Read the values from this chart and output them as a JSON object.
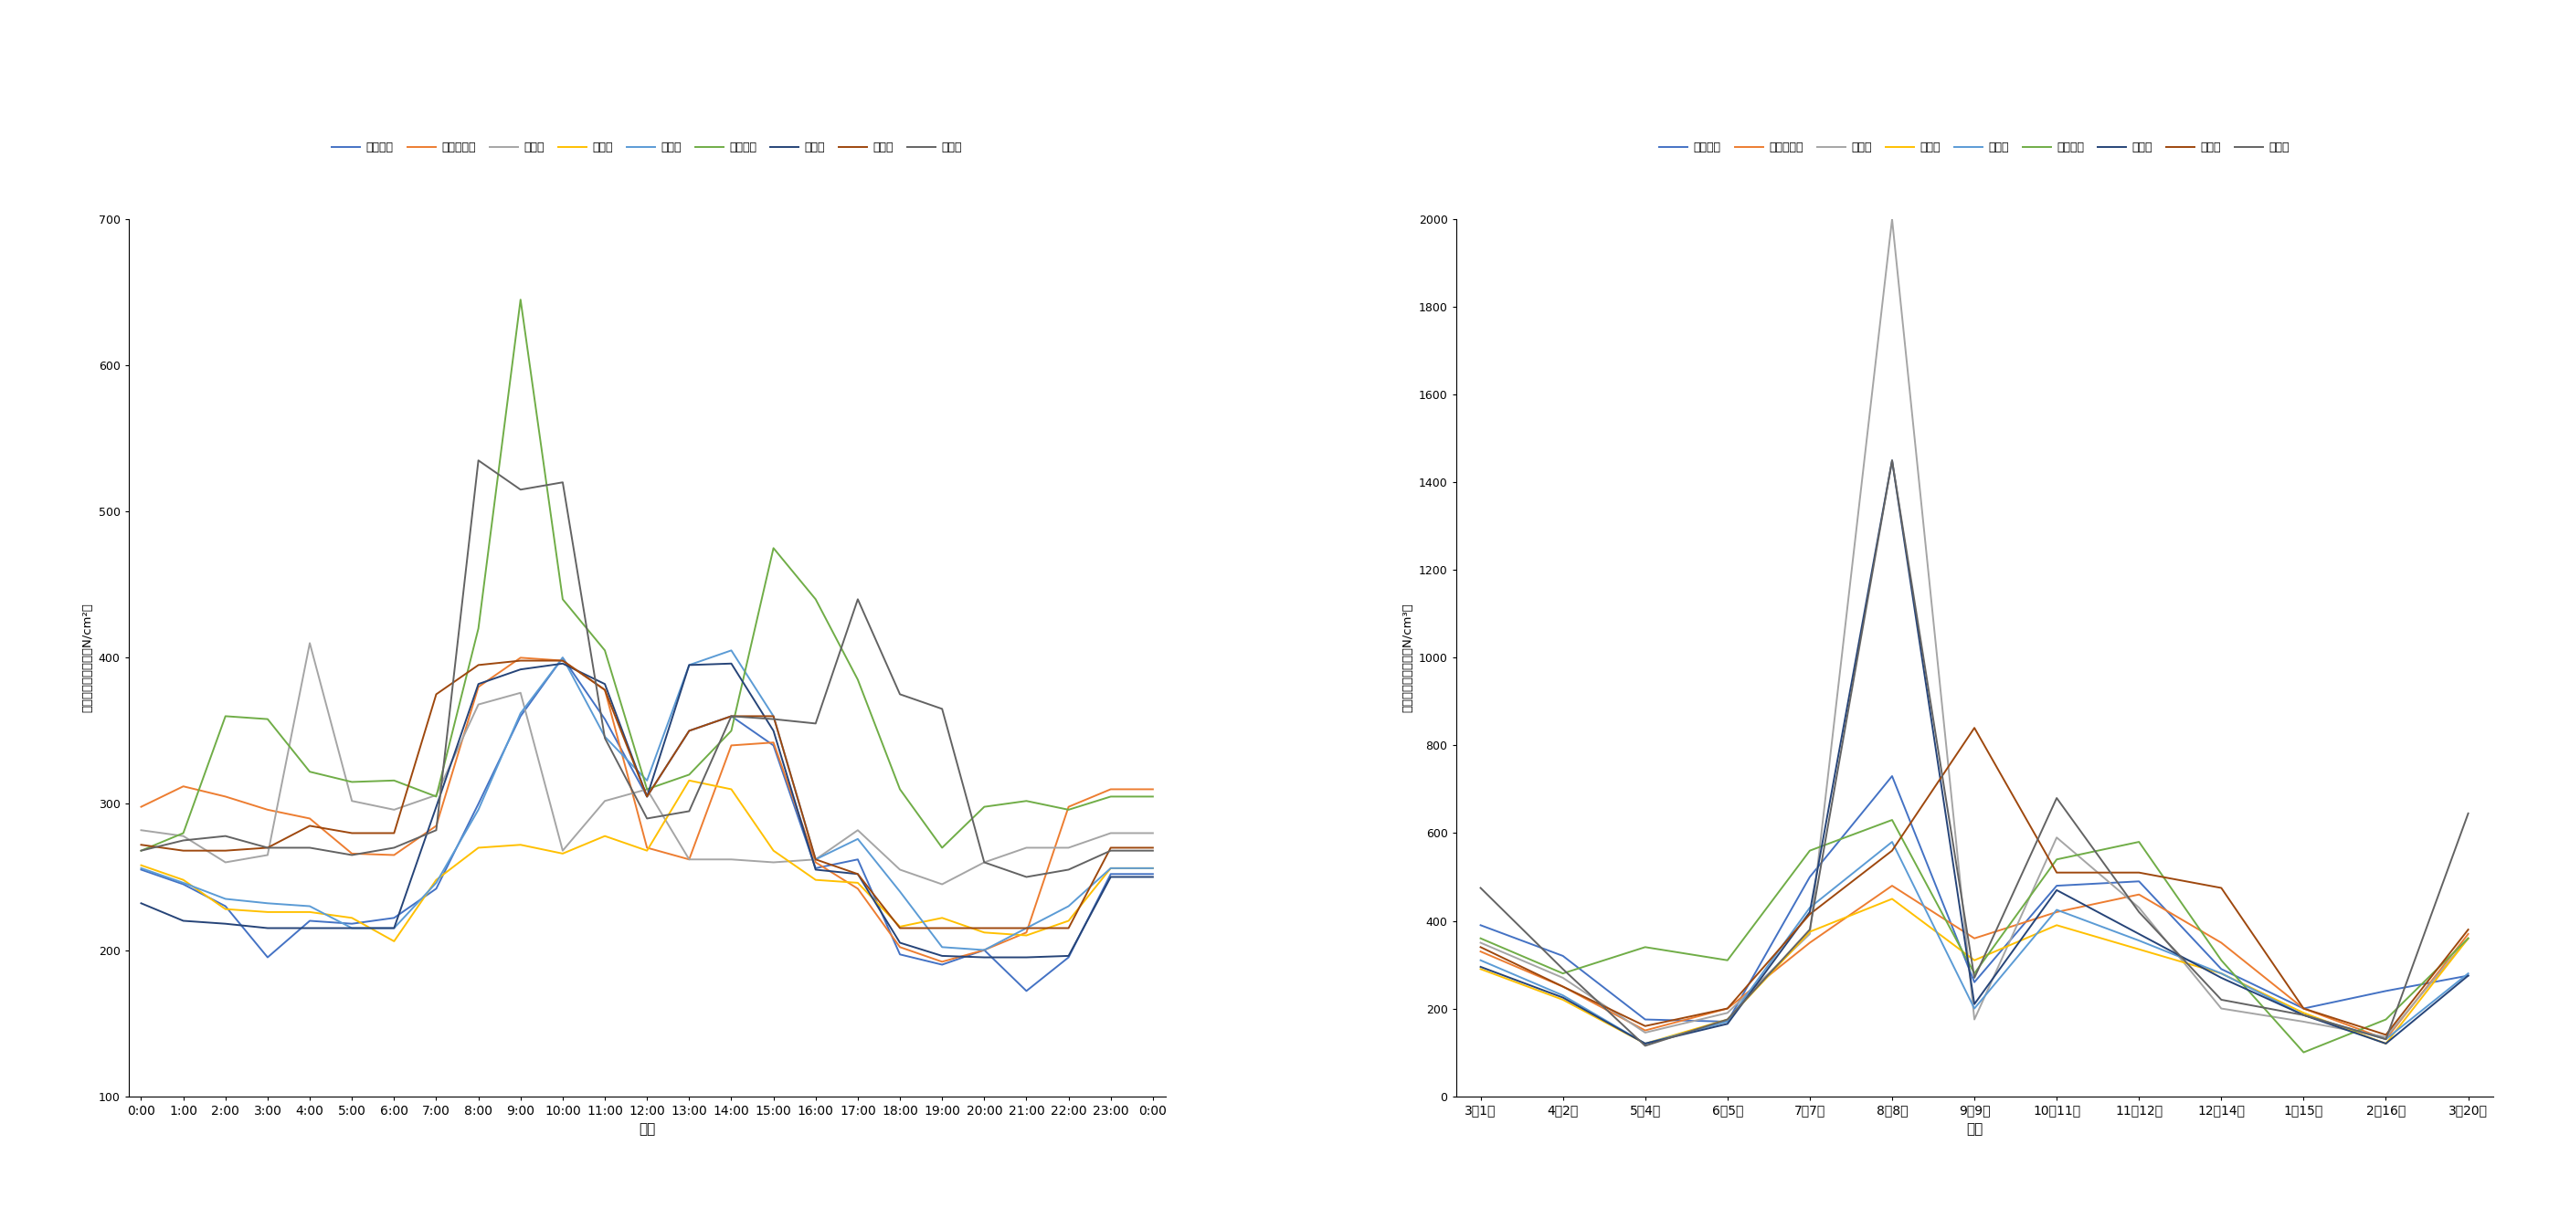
{
  "chart1": {
    "xlabel": "时间",
    "ylabel": "负离子浓度日均值（N/cm²）",
    "ylim": [
      100,
      700
    ],
    "yticks": [
      100,
      200,
      300,
      400,
      500,
      600,
      700
    ],
    "xticks": [
      "0:00",
      "1:00",
      "2:00",
      "3:00",
      "4:00",
      "5:00",
      "6:00",
      "7:00",
      "8:00",
      "9:00",
      "10:00",
      "11:00",
      "12:00",
      "13:00",
      "14:00",
      "15:00",
      "16:00",
      "17:00",
      "18:00",
      "19:00",
      "20:00",
      "21:00",
      "22:00",
      "23:00",
      "0:00"
    ],
    "series": {
      "公园大门": {
        "color": "#4472C4",
        "data": [
          255,
          245,
          230,
          195,
          220,
          218,
          222,
          242,
          300,
          360,
          400,
          358,
          305,
          350,
          360,
          340,
          256,
          262,
          197,
          190,
          200,
          172,
          195,
          252,
          252
        ]
      },
      "大门旁密林": {
        "color": "#ED7D31",
        "data": [
          298,
          312,
          305,
          296,
          290,
          266,
          265,
          285,
          380,
          400,
          398,
          378,
          270,
          262,
          340,
          342,
          260,
          242,
          202,
          192,
          200,
          212,
          298,
          310,
          310
        ]
      },
      "荷花池": {
        "color": "#A5A5A5",
        "data": [
          282,
          278,
          260,
          265,
          410,
          302,
          296,
          306,
          368,
          376,
          268,
          302,
          310,
          262,
          262,
          260,
          262,
          282,
          255,
          245,
          260,
          270,
          270,
          280,
          280
        ]
      },
      "乔灌草": {
        "color": "#FFC000",
        "data": [
          258,
          248,
          228,
          226,
          226,
          222,
          206,
          248,
          270,
          272,
          266,
          278,
          268,
          316,
          310,
          268,
          248,
          246,
          216,
          222,
          212,
          210,
          220,
          256,
          256
        ]
      },
      "小广场": {
        "color": "#5B9BD5",
        "data": [
          256,
          246,
          235,
          232,
          230,
          215,
          215,
          246,
          296,
          362,
          400,
          346,
          316,
          395,
          405,
          360,
          262,
          276,
          240,
          202,
          200,
          215,
          230,
          256,
          256
        ]
      },
      "音乐广场": {
        "color": "#70AD47",
        "data": [
          268,
          280,
          360,
          358,
          322,
          315,
          316,
          305,
          420,
          645,
          440,
          405,
          310,
          320,
          350,
          475,
          440,
          385,
          310,
          270,
          298,
          302,
          296,
          305,
          305
        ]
      },
      "八角亭": {
        "color": "#264478",
        "data": [
          232,
          220,
          218,
          215,
          215,
          215,
          215,
          298,
          382,
          392,
          396,
          382,
          305,
          395,
          396,
          350,
          255,
          252,
          205,
          196,
          195,
          195,
          196,
          250,
          250
        ]
      },
      "水杉林": {
        "color": "#9E480E",
        "data": [
          272,
          268,
          268,
          270,
          285,
          280,
          280,
          375,
          395,
          398,
          398,
          378,
          305,
          350,
          360,
          360,
          262,
          252,
          215,
          215,
          215,
          215,
          215,
          270,
          270
        ]
      },
      "大草坪": {
        "color": "#636363",
        "data": [
          268,
          275,
          278,
          270,
          270,
          265,
          270,
          282,
          535,
          515,
          520,
          345,
          290,
          295,
          360,
          358,
          355,
          440,
          375,
          365,
          260,
          250,
          255,
          268,
          268
        ]
      }
    }
  },
  "chart2": {
    "xlabel": "时间",
    "ylabel": "负离子浓度日均值（N/cm³）",
    "ylim": [
      0,
      2000
    ],
    "yticks": [
      0,
      200,
      400,
      600,
      800,
      1000,
      1200,
      1400,
      1600,
      1800,
      2000
    ],
    "xticks": [
      "3月1日",
      "4月2日",
      "5月4日",
      "6月5日",
      "7月7日",
      "8月8日",
      "9月9日",
      "10月11日",
      "11月12日",
      "12月14日",
      "1月15日",
      "2月16日",
      "3月20日"
    ],
    "series": {
      "公园大门": {
        "color": "#4472C4",
        "data": [
          390,
          320,
          175,
          170,
          500,
          730,
          260,
          480,
          490,
          290,
          200,
          240,
          275
        ]
      },
      "人门旁密林": {
        "color": "#ED7D31",
        "data": [
          330,
          250,
          150,
          200,
          350,
          480,
          360,
          420,
          460,
          350,
          200,
          130,
          370
        ]
      },
      "荷花池": {
        "color": "#A5A5A5",
        "data": [
          350,
          270,
          145,
          190,
          370,
          2000,
          175,
          590,
          430,
          200,
          170,
          135,
          360
        ]
      },
      "乔灌草": {
        "color": "#FFC000",
        "data": [
          290,
          220,
          120,
          175,
          375,
          450,
          310,
          390,
          335,
          280,
          190,
          120,
          360
        ]
      },
      "小广场": {
        "color": "#5B9BD5",
        "data": [
          310,
          230,
          120,
          170,
          430,
          580,
          200,
          425,
          355,
          280,
          185,
          130,
          280
        ]
      },
      "音乐广场": {
        "color": "#70AD47",
        "data": [
          360,
          280,
          340,
          310,
          560,
          630,
          280,
          540,
          580,
          310,
          100,
          175,
          360
        ]
      },
      "八角亭": {
        "color": "#264478",
        "data": [
          295,
          225,
          120,
          165,
          420,
          1450,
          210,
          470,
          370,
          270,
          185,
          120,
          275
        ]
      },
      "水杉林": {
        "color": "#9E480E",
        "data": [
          340,
          250,
          160,
          200,
          415,
          560,
          840,
          510,
          510,
          475,
          200,
          140,
          380
        ]
      },
      "大草坪": {
        "color": "#636363",
        "data": [
          475,
          290,
          115,
          175,
          380,
          1450,
          270,
          680,
          420,
          220,
          185,
          130,
          645
        ]
      }
    }
  }
}
